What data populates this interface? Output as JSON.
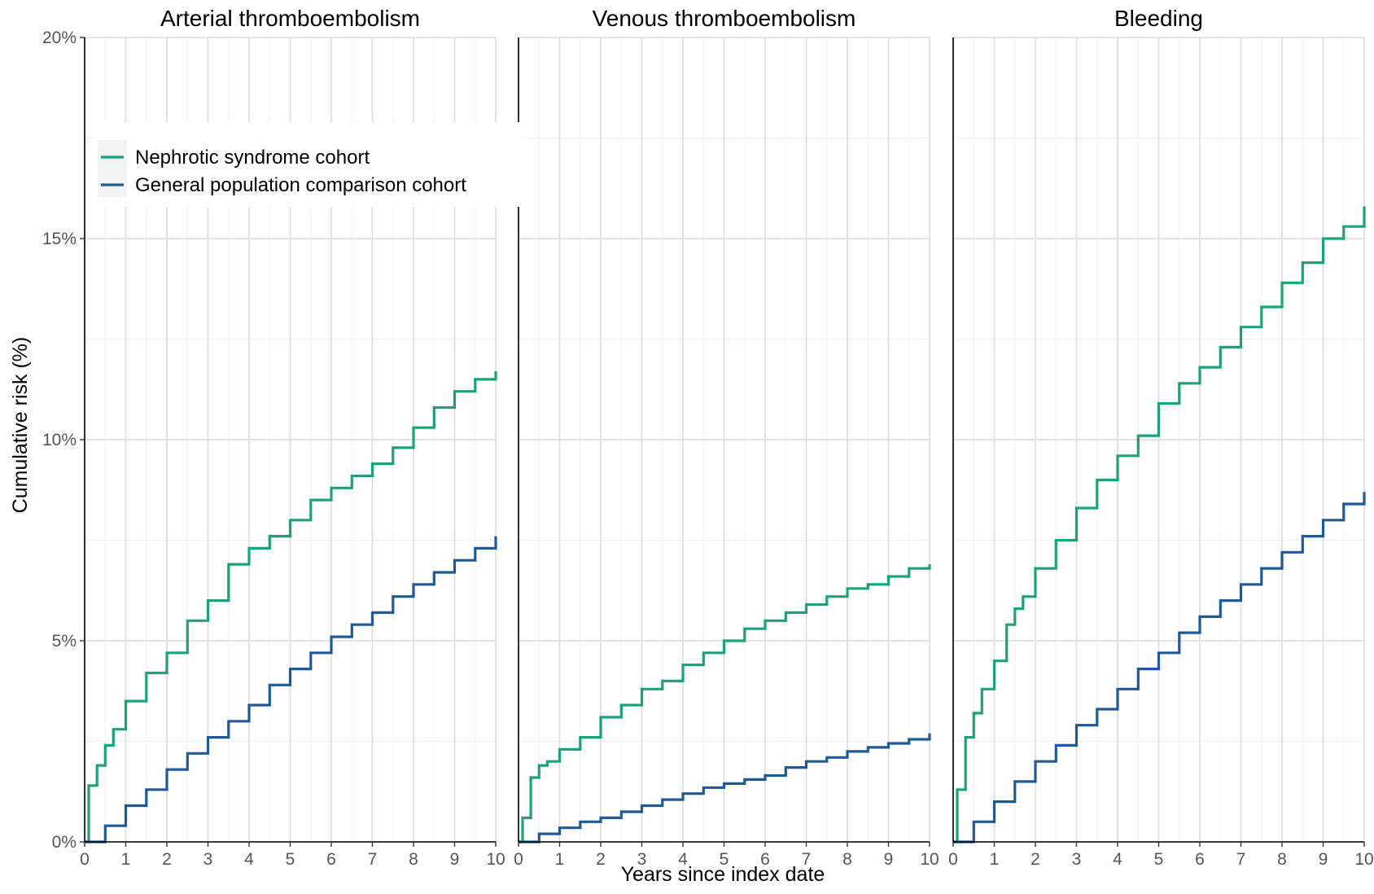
{
  "chart_data": {
    "type": "line",
    "xlabel": "Years since index date",
    "ylabel": "Cumulative risk (%)",
    "xlim": [
      0,
      10
    ],
    "ylim": [
      0,
      20
    ],
    "x_ticks": [
      "0",
      "1",
      "2",
      "3",
      "4",
      "5",
      "6",
      "7",
      "8",
      "9",
      "10"
    ],
    "y_ticks": [
      "0%",
      "5%",
      "10%",
      "15%",
      "20%"
    ],
    "grid": true,
    "legend_position": "top-left",
    "legend": [
      {
        "name": "Nephrotic syndrome cohort",
        "color": "#1aa37a"
      },
      {
        "name": "General population comparison cohort",
        "color": "#1f5a96"
      }
    ],
    "panels": [
      {
        "title": "Arterial thromboembolism",
        "series": [
          {
            "name": "Nephrotic syndrome cohort",
            "color": "#1aa37a",
            "x": [
              0,
              0.1,
              0.3,
              0.5,
              0.7,
              1,
              1.5,
              2,
              2.5,
              3,
              3.5,
              4,
              4.5,
              5,
              5.5,
              6,
              6.5,
              7,
              7.5,
              8,
              8.5,
              9,
              9.5,
              10
            ],
            "y": [
              0,
              1.4,
              1.9,
              2.4,
              2.8,
              3.5,
              4.2,
              4.7,
              5.5,
              6.0,
              6.9,
              7.3,
              7.6,
              8.0,
              8.5,
              8.8,
              9.1,
              9.4,
              9.8,
              10.3,
              10.8,
              11.2,
              11.5,
              11.7
            ]
          },
          {
            "name": "General population comparison cohort",
            "color": "#1f5a96",
            "x": [
              0,
              0.5,
              1,
              1.5,
              2,
              2.5,
              3,
              3.5,
              4,
              4.5,
              5,
              5.5,
              6,
              6.5,
              7,
              7.5,
              8,
              8.5,
              9,
              9.5,
              10
            ],
            "y": [
              0,
              0.4,
              0.9,
              1.3,
              1.8,
              2.2,
              2.6,
              3.0,
              3.4,
              3.9,
              4.3,
              4.7,
              5.1,
              5.4,
              5.7,
              6.1,
              6.4,
              6.7,
              7.0,
              7.3,
              7.6
            ]
          }
        ]
      },
      {
        "title": "Venous thromboembolism",
        "series": [
          {
            "name": "Nephrotic syndrome cohort",
            "color": "#1aa37a",
            "x": [
              0,
              0.1,
              0.3,
              0.5,
              0.7,
              1,
              1.5,
              2,
              2.5,
              3,
              3.5,
              4,
              4.5,
              5,
              5.5,
              6,
              6.5,
              7,
              7.5,
              8,
              8.5,
              9,
              9.5,
              10
            ],
            "y": [
              0,
              0.6,
              1.6,
              1.9,
              2.0,
              2.3,
              2.6,
              3.1,
              3.4,
              3.8,
              4.0,
              4.4,
              4.7,
              5.0,
              5.3,
              5.5,
              5.7,
              5.9,
              6.1,
              6.3,
              6.4,
              6.6,
              6.8,
              6.9
            ]
          },
          {
            "name": "General population comparison cohort",
            "color": "#1f5a96",
            "x": [
              0,
              0.5,
              1,
              1.5,
              2,
              2.5,
              3,
              3.5,
              4,
              4.5,
              5,
              5.5,
              6,
              6.5,
              7,
              7.5,
              8,
              8.5,
              9,
              9.5,
              10
            ],
            "y": [
              0,
              0.2,
              0.35,
              0.5,
              0.6,
              0.75,
              0.9,
              1.05,
              1.2,
              1.35,
              1.45,
              1.55,
              1.65,
              1.85,
              2.0,
              2.1,
              2.25,
              2.35,
              2.45,
              2.55,
              2.7
            ]
          }
        ]
      },
      {
        "title": "Bleeding",
        "series": [
          {
            "name": "Nephrotic syndrome cohort",
            "color": "#1aa37a",
            "x": [
              0,
              0.1,
              0.3,
              0.5,
              0.7,
              1,
              1.3,
              1.5,
              1.7,
              2,
              2.5,
              3,
              3.5,
              4,
              4.5,
              5,
              5.5,
              6,
              6.5,
              7,
              7.5,
              8,
              8.5,
              9,
              9.5,
              10
            ],
            "y": [
              0,
              1.3,
              2.6,
              3.2,
              3.8,
              4.5,
              5.4,
              5.8,
              6.1,
              6.8,
              7.5,
              8.3,
              9.0,
              9.6,
              10.1,
              10.9,
              11.4,
              11.8,
              12.3,
              12.8,
              13.3,
              13.9,
              14.4,
              15.0,
              15.3,
              15.8
            ]
          },
          {
            "name": "General population comparison cohort",
            "color": "#1f5a96",
            "x": [
              0,
              0.5,
              1,
              1.5,
              2,
              2.5,
              3,
              3.5,
              4,
              4.5,
              5,
              5.5,
              6,
              6.5,
              7,
              7.5,
              8,
              8.5,
              9,
              9.5,
              10
            ],
            "y": [
              0,
              0.5,
              1.0,
              1.5,
              2.0,
              2.4,
              2.9,
              3.3,
              3.8,
              4.3,
              4.7,
              5.2,
              5.6,
              6.0,
              6.4,
              6.8,
              7.2,
              7.6,
              8.0,
              8.4,
              8.7
            ]
          }
        ]
      }
    ]
  }
}
